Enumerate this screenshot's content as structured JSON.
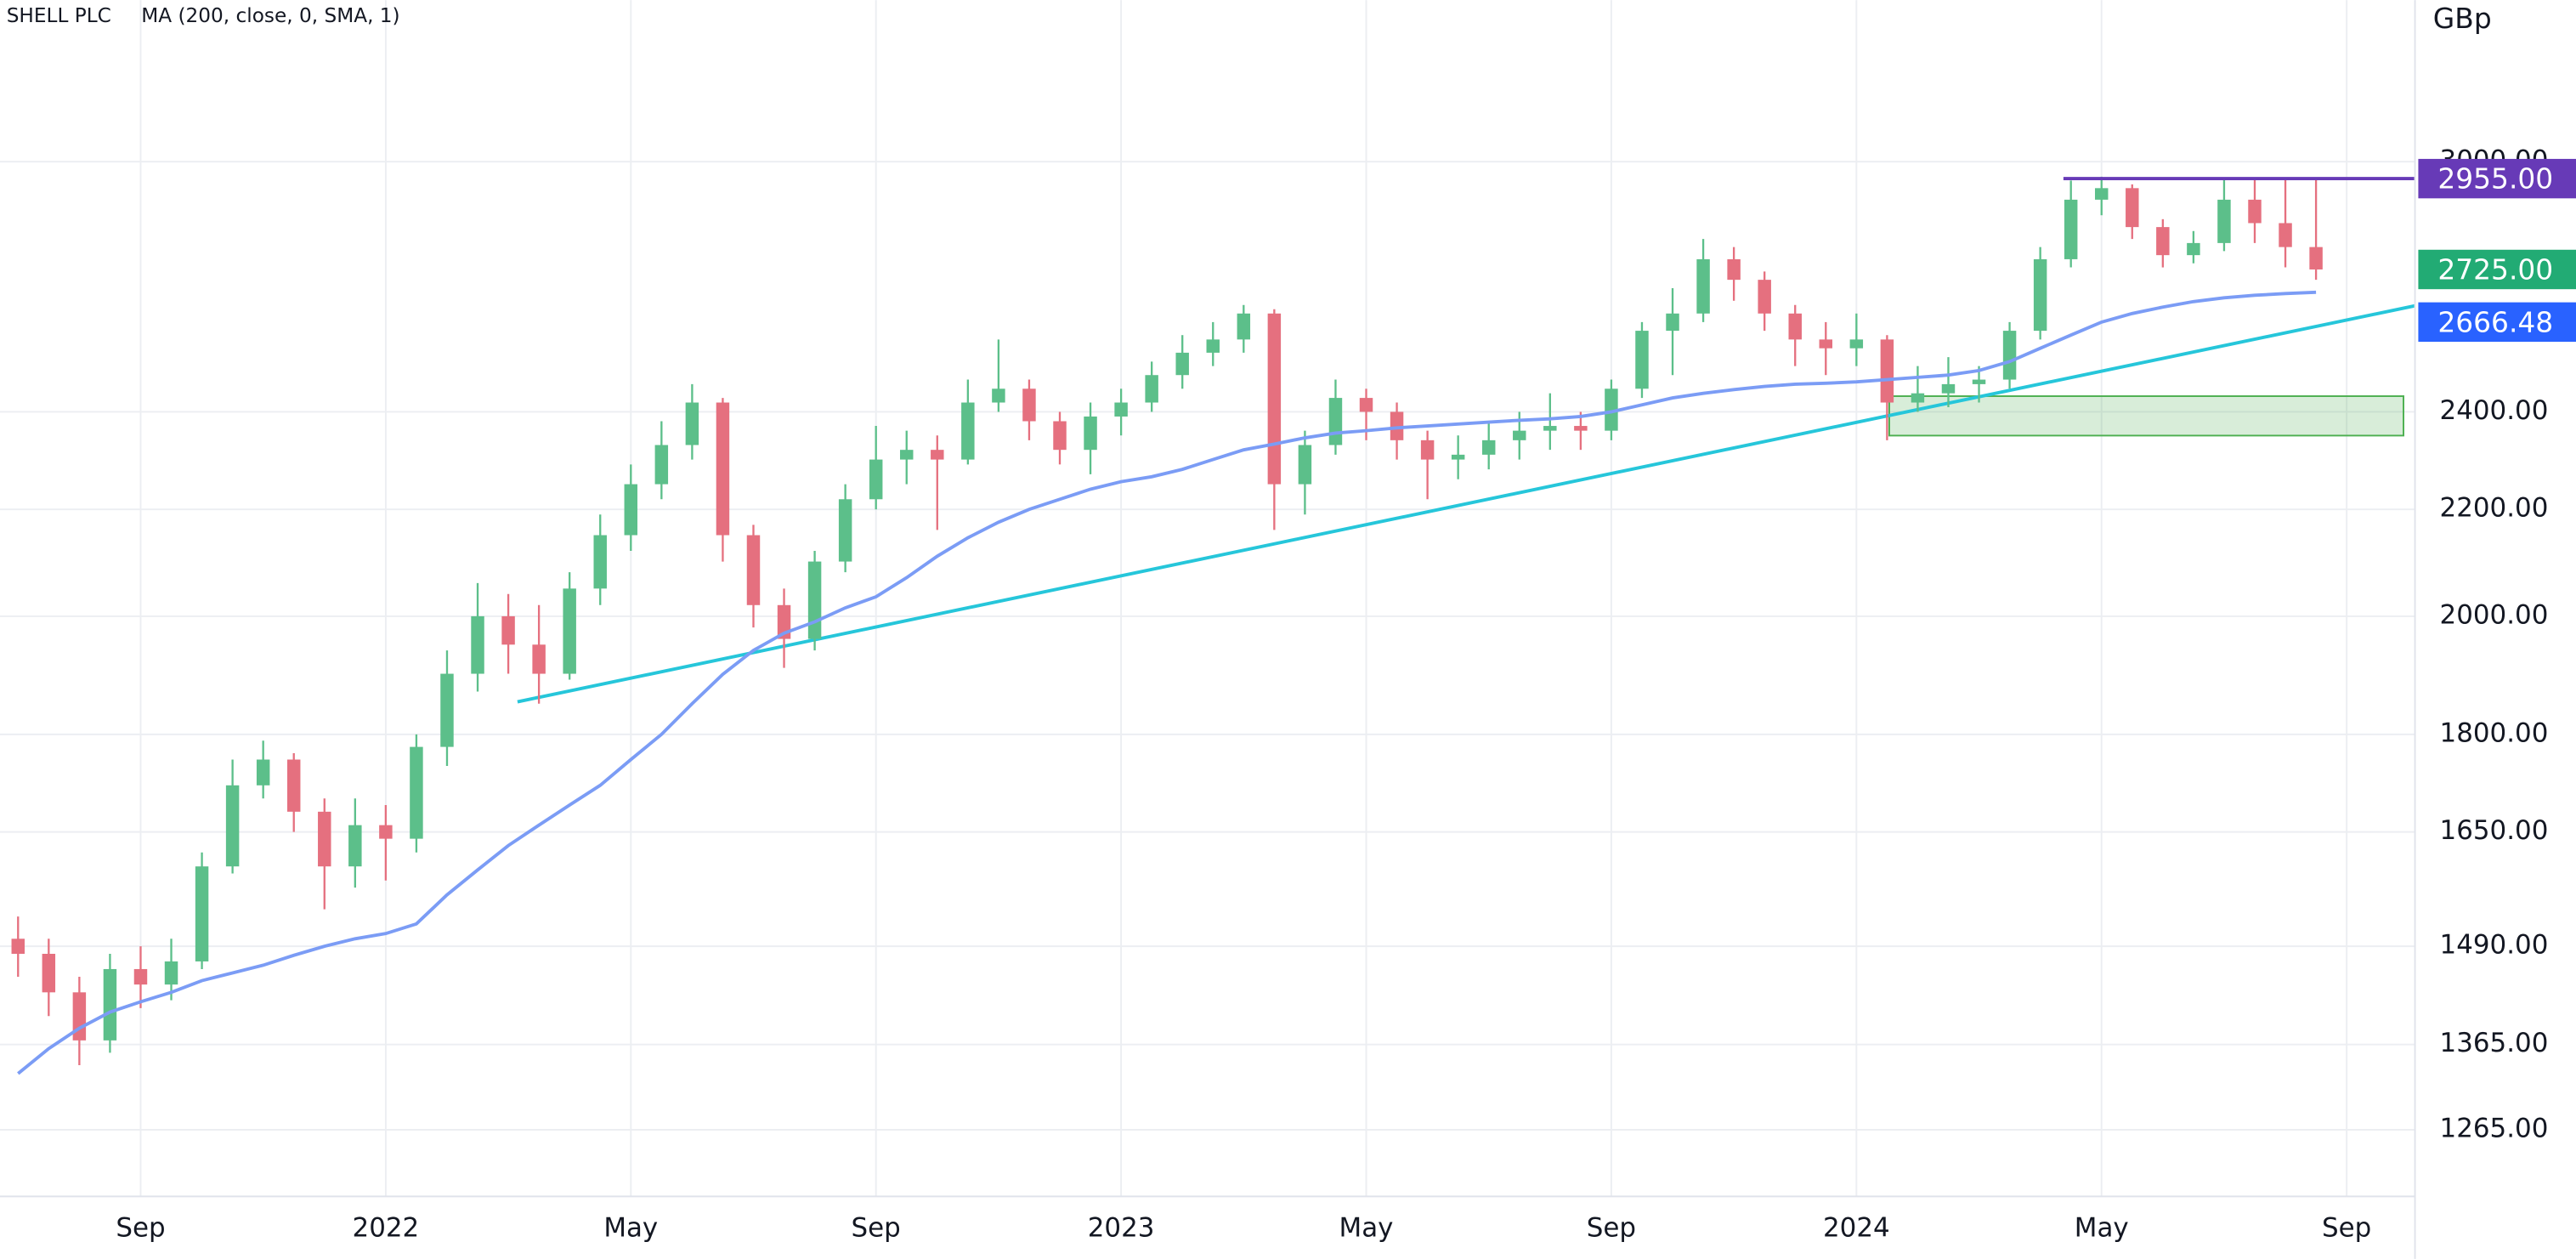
{
  "chart_data": {
    "type": "candlestick",
    "title": "SHELL PLC",
    "unit": "GBp",
    "log_scale": true,
    "grid": true,
    "up_color": "#5cbf8a",
    "down_color": "#e5707f",
    "categories": [
      null,
      null,
      null,
      null,
      "Sep",
      null,
      null,
      null,
      null,
      null,
      null,
      null,
      "2022",
      null,
      null,
      null,
      null,
      null,
      null,
      null,
      "May",
      null,
      null,
      null,
      null,
      null,
      null,
      null,
      "Sep",
      null,
      null,
      null,
      null,
      null,
      null,
      null,
      "2023",
      null,
      null,
      null,
      null,
      null,
      null,
      null,
      "May",
      null,
      null,
      null,
      null,
      null,
      null,
      null,
      "Sep",
      null,
      null,
      null,
      null,
      null,
      null,
      null,
      "2024",
      null,
      null,
      null,
      null,
      null,
      null,
      null,
      "May",
      null,
      null,
      null,
      null,
      null,
      null,
      null,
      "Sep"
    ],
    "open": [
      1500,
      1480,
      1430,
      1370,
      1460,
      1440,
      1470,
      1600,
      1720,
      1760,
      1680,
      1600,
      1660,
      1640,
      1780,
      1900,
      2000,
      1950,
      1900,
      2050,
      2150,
      2250,
      2330,
      2420,
      2150,
      2020,
      1960,
      2100,
      2220,
      2300,
      2320,
      2300,
      2420,
      2450,
      2380,
      2320,
      2390,
      2420,
      2480,
      2530,
      2560,
      2620,
      2250,
      2330,
      2430,
      2400,
      2340,
      2300,
      2310,
      2340,
      2360,
      2370,
      2360,
      2450,
      2580,
      2620,
      2750,
      2700,
      2620,
      2560,
      2540,
      2560,
      2420,
      2440,
      2460,
      2470,
      2580,
      2750,
      2900,
      2930,
      2830,
      2760,
      2790,
      2900,
      2840,
      2780,
      null
    ],
    "high": [
      1530,
      1500,
      1450,
      1480,
      1490,
      1500,
      1620,
      1760,
      1790,
      1770,
      1700,
      1700,
      1690,
      1800,
      1940,
      2060,
      2040,
      2020,
      2080,
      2190,
      2290,
      2380,
      2460,
      2430,
      2170,
      2050,
      2120,
      2250,
      2370,
      2360,
      2350,
      2470,
      2560,
      2470,
      2400,
      2420,
      2450,
      2510,
      2570,
      2600,
      2640,
      2630,
      2360,
      2470,
      2450,
      2420,
      2360,
      2350,
      2380,
      2400,
      2440,
      2400,
      2470,
      2600,
      2680,
      2800,
      2780,
      2720,
      2640,
      2600,
      2620,
      2570,
      2500,
      2520,
      2500,
      2600,
      2780,
      2950,
      2960,
      2940,
      2850,
      2820,
      2955,
      2955,
      2955,
      2955,
      null
    ],
    "low": [
      1450,
      1400,
      1340,
      1355,
      1410,
      1420,
      1460,
      1590,
      1700,
      1650,
      1540,
      1570,
      1580,
      1620,
      1750,
      1870,
      1900,
      1850,
      1890,
      2020,
      2120,
      2220,
      2300,
      2100,
      1980,
      1910,
      1940,
      2080,
      2200,
      2250,
      2160,
      2290,
      2400,
      2340,
      2290,
      2270,
      2350,
      2400,
      2450,
      2500,
      2530,
      2160,
      2190,
      2310,
      2340,
      2300,
      2220,
      2260,
      2280,
      2300,
      2320,
      2320,
      2340,
      2430,
      2480,
      2600,
      2650,
      2580,
      2500,
      2480,
      2500,
      2340,
      2400,
      2410,
      2420,
      2450,
      2560,
      2730,
      2860,
      2800,
      2730,
      2740,
      2770,
      2790,
      2730,
      2700,
      null
    ],
    "close": [
      1480,
      1430,
      1370,
      1460,
      1440,
      1470,
      1600,
      1720,
      1760,
      1680,
      1600,
      1660,
      1640,
      1780,
      1900,
      2000,
      1950,
      1900,
      2050,
      2150,
      2250,
      2330,
      2420,
      2150,
      2020,
      1960,
      2100,
      2220,
      2300,
      2320,
      2300,
      2420,
      2450,
      2380,
      2320,
      2390,
      2420,
      2480,
      2530,
      2560,
      2620,
      2250,
      2330,
      2430,
      2400,
      2340,
      2300,
      2310,
      2340,
      2360,
      2370,
      2360,
      2450,
      2580,
      2620,
      2750,
      2700,
      2620,
      2560,
      2540,
      2560,
      2420,
      2440,
      2460,
      2470,
      2580,
      2750,
      2900,
      2930,
      2830,
      2760,
      2790,
      2900,
      2840,
      2780,
      2725,
      null
    ],
    "series": [
      {
        "name": "MA (200, close, 0, SMA, 1)",
        "color": "#7b9cf5",
        "values": [
          1330,
          1360,
          1385,
          1405,
          1418,
          1430,
          1445,
          1455,
          1465,
          1478,
          1490,
          1500,
          1507,
          1520,
          1560,
          1595,
          1630,
          1660,
          1690,
          1720,
          1760,
          1800,
          1850,
          1899,
          1940,
          1970,
          1990,
          2015,
          2035,
          2070,
          2110,
          2145,
          2175,
          2200,
          2220,
          2240,
          2255,
          2265,
          2280,
          2300,
          2320,
          2332,
          2345,
          2355,
          2360,
          2366,
          2370,
          2374,
          2378,
          2382,
          2385,
          2390,
          2400,
          2415,
          2430,
          2440,
          2448,
          2455,
          2460,
          2462,
          2465,
          2470,
          2475,
          2480,
          2490,
          2510,
          2540,
          2570,
          2600,
          2620,
          2635,
          2648,
          2657,
          2663,
          2667,
          2670,
          null
        ]
      }
    ],
    "ylim": [
      1192,
      3465
    ],
    "yticks": [
      {
        "value": 1265,
        "label": "1265.00"
      },
      {
        "value": 1365,
        "label": "1365.00"
      },
      {
        "value": 1490,
        "label": "1490.00"
      },
      {
        "value": 1650,
        "label": "1650.00"
      },
      {
        "value": 1800,
        "label": "1800.00"
      },
      {
        "value": 2000,
        "label": "2000.00"
      },
      {
        "value": 2200,
        "label": "2200.00"
      },
      {
        "value": 2400,
        "label": "2400.00"
      },
      {
        "value": 3000,
        "label": "3000.00"
      }
    ],
    "price_labels": [
      {
        "value": 2955,
        "label": "2955.00",
        "color": "#673ab7"
      },
      {
        "value": 2725,
        "label": "2725.00",
        "color": "#22ab74"
      },
      {
        "value": 2666.48,
        "label": "2666.48",
        "color": "#2962ff"
      }
    ]
  }
}
